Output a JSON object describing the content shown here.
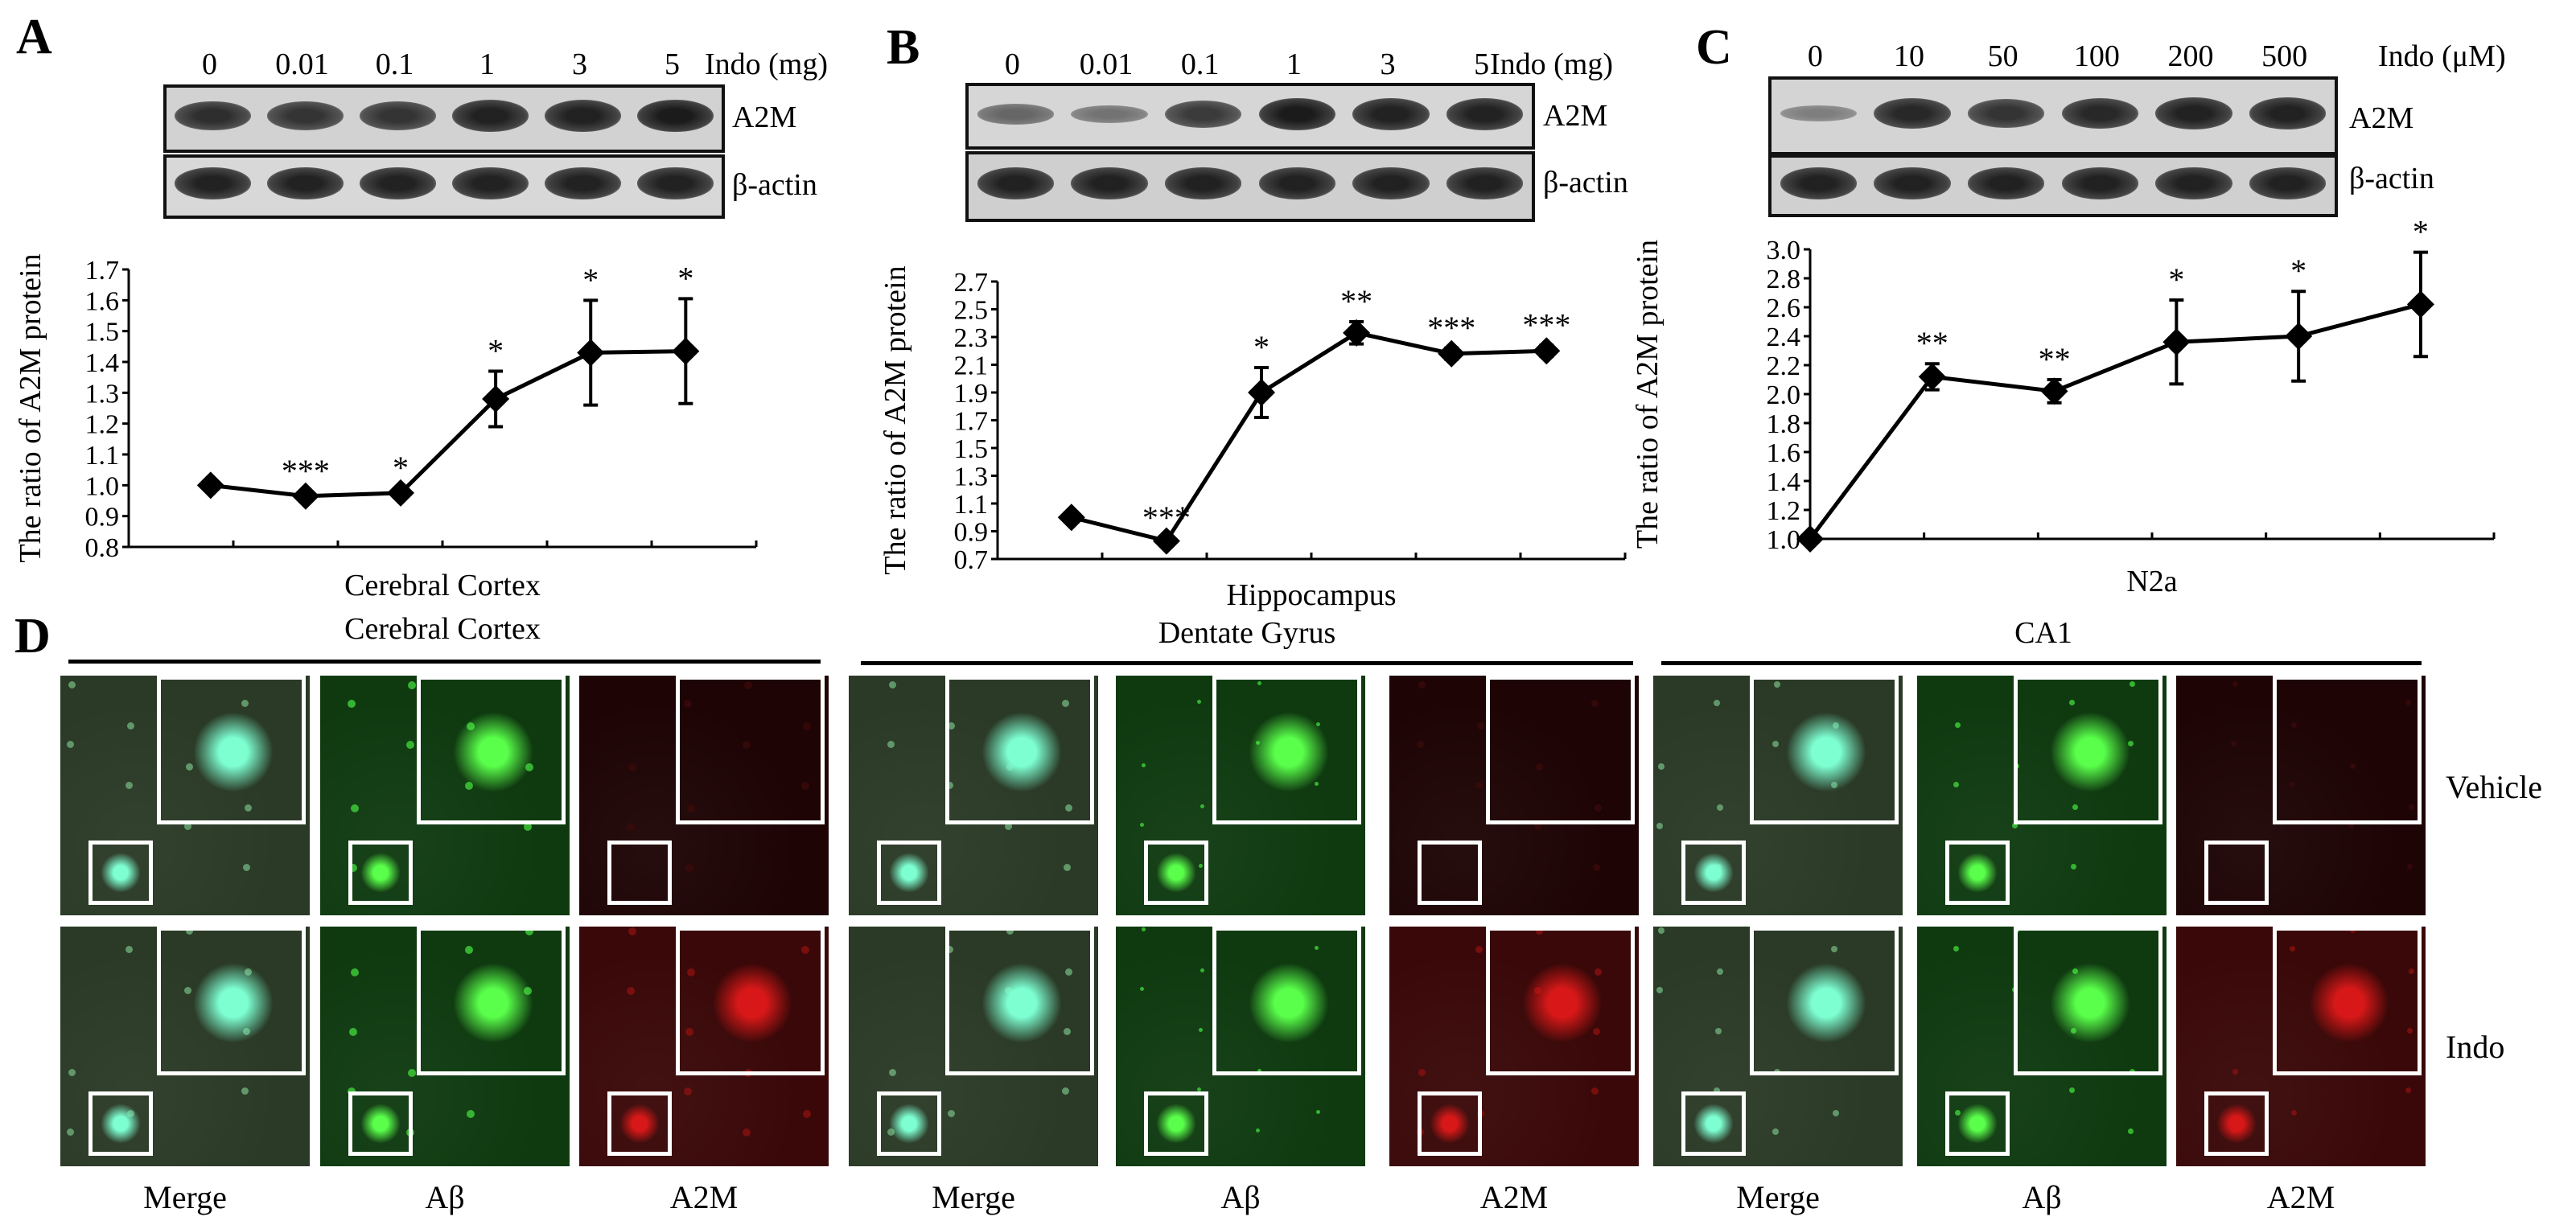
{
  "panels": {
    "A": {
      "label": "A",
      "lanes": [
        "0",
        "0.01",
        "0.1",
        "1",
        "3",
        "5"
      ],
      "lane_unit": "Indo (mg)",
      "blot_labels": [
        "A2M",
        "β-actin"
      ],
      "band_intensity": [
        0.8,
        0.75,
        0.75,
        0.9,
        0.9,
        0.95
      ],
      "chart_data": {
        "type": "line",
        "x": [
          0,
          0.01,
          0.1,
          1,
          3,
          5
        ],
        "values": [
          1.0,
          0.965,
          0.975,
          1.28,
          1.43,
          1.435
        ],
        "errors": [
          0.01,
          0.015,
          0.015,
          0.09,
          0.17,
          0.17
        ],
        "significance": [
          "",
          "***",
          "*",
          "*",
          "*",
          "*"
        ],
        "ylabel": "The ratio of A2M protein",
        "xlabel": "Cerebral Cortex",
        "ylim": [
          0.8,
          1.7
        ],
        "yticks": [
          "0.8",
          "0.9",
          "1.0",
          "1.1",
          "1.2",
          "1.3",
          "1.4",
          "1.5",
          "1.6",
          "1.7"
        ]
      }
    },
    "B": {
      "label": "B",
      "lanes": [
        "0",
        "0.01",
        "0.1",
        "1",
        "3",
        "5"
      ],
      "lane_unit": "Indo (mg)",
      "blot_labels": [
        "A2M",
        "β-actin"
      ],
      "band_intensity": [
        0.35,
        0.25,
        0.7,
        0.95,
        0.9,
        0.9
      ],
      "chart_data": {
        "type": "line",
        "x": [
          0,
          0.01,
          0.1,
          1,
          3,
          5
        ],
        "values": [
          1.0,
          0.83,
          1.9,
          2.33,
          2.18,
          2.2
        ],
        "errors": [
          0.02,
          0.02,
          0.18,
          0.08,
          0.04,
          0.04
        ],
        "significance": [
          "",
          "***",
          "*",
          "**",
          "***",
          "***"
        ],
        "ylabel": "The ratio of A2M protein",
        "xlabel": "Hippocampus",
        "ylim": [
          0.7,
          2.7
        ],
        "yticks": [
          "0.7",
          "0.9",
          "1.1",
          "1.3",
          "1.5",
          "1.7",
          "1.9",
          "2.1",
          "2.3",
          "2.5",
          "2.7"
        ]
      }
    },
    "C": {
      "label": "C",
      "lanes": [
        "0",
        "10",
        "50",
        "100",
        "200",
        "500"
      ],
      "lane_unit": "Indo (μM)",
      "blot_labels": [
        "A2M",
        "β-actin"
      ],
      "band_intensity": [
        0.15,
        0.85,
        0.75,
        0.85,
        0.9,
        0.9
      ],
      "chart_data": {
        "type": "line",
        "x": [
          0,
          10,
          50,
          100,
          200,
          500
        ],
        "values": [
          1.0,
          2.12,
          2.02,
          2.36,
          2.4,
          2.62
        ],
        "errors": [
          0.01,
          0.09,
          0.08,
          0.29,
          0.31,
          0.36
        ],
        "significance": [
          "",
          "**",
          "**",
          "*",
          "*",
          "*"
        ],
        "ylabel": "The ratio of A2M protein",
        "xlabel": "N2a",
        "ylim": [
          1.0,
          3.0
        ],
        "yticks": [
          "1.0",
          "1.2",
          "1.4",
          "1.6",
          "1.8",
          "2.0",
          "2.2",
          "2.4",
          "2.6",
          "2.8",
          "3.0"
        ]
      }
    }
  },
  "panel_d": {
    "label": "D",
    "regions": [
      "Cerebral Cortex",
      "Dentate Gyrus",
      "CA1"
    ],
    "channels": [
      "Merge",
      "Aβ",
      "A2M"
    ],
    "conditions": [
      "Vehicle",
      "Indo"
    ],
    "colors": {
      "merge_bg": "#2a3a26",
      "abeta_bg": "#0f3a10",
      "a2m_bg": "#3a0808",
      "a2m_vehicle_bg": "#1e0404",
      "plaque": "#59ff4a",
      "merge_plaque": "#7dffd2",
      "a2m_signal": "#d81818"
    }
  }
}
